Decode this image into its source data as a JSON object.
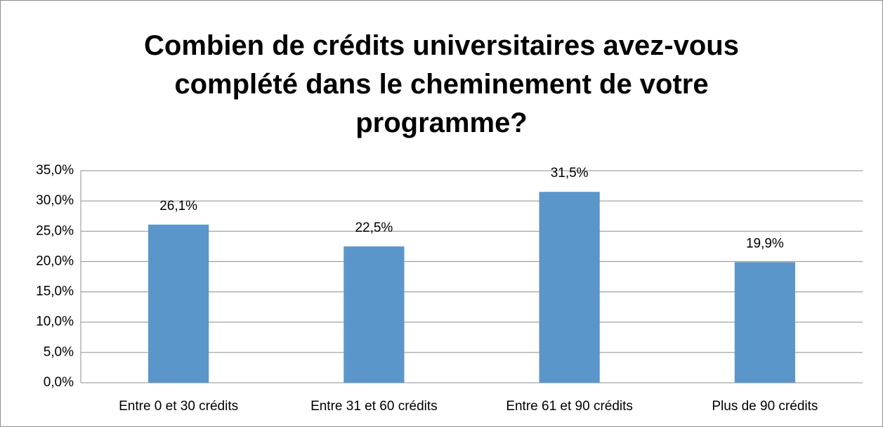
{
  "chart_data": {
    "type": "bar",
    "title": "Combien de crédits universitaires avez-vous\ncomplété dans le cheminement de votre\nprogramme?",
    "categories": [
      "Entre 0 et 30 crédits",
      "Entre 31 et 60 crédits",
      "Entre 61 et 90 crédits",
      "Plus de 90 crédits"
    ],
    "values": [
      26.1,
      22.5,
      31.5,
      19.9
    ],
    "value_labels": [
      "26,1%",
      "22,5%",
      "31,5%",
      "19,9%"
    ],
    "color": "#5b96cb",
    "ylim": [
      0,
      35
    ],
    "yticks": [
      {
        "value": 0,
        "label": "0,0%"
      },
      {
        "value": 5,
        "label": "5,0%"
      },
      {
        "value": 10,
        "label": "10,0%"
      },
      {
        "value": 15,
        "label": "15,0%"
      },
      {
        "value": 20,
        "label": "20,0%"
      },
      {
        "value": 25,
        "label": "25,0%"
      },
      {
        "value": 30,
        "label": "30,0%"
      },
      {
        "value": 35,
        "label": "35,0%"
      }
    ],
    "grid": true
  }
}
